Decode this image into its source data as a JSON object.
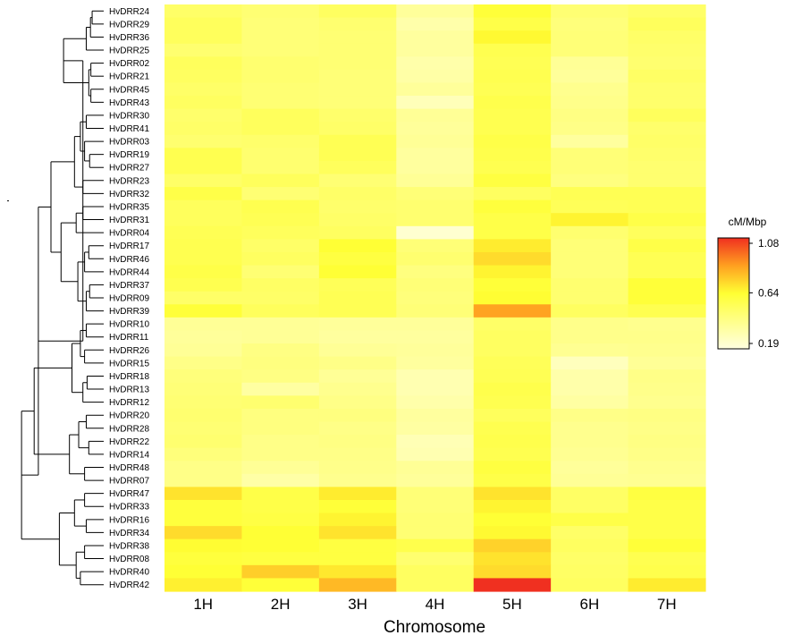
{
  "chart_data": {
    "type": "heatmap",
    "title": "",
    "xlabel": "Chromosome",
    "ylabel": "",
    "columns": [
      "1H",
      "2H",
      "3H",
      "4H",
      "5H",
      "6H",
      "7H"
    ],
    "rows": [
      "HvDRR24",
      "HvDRR29",
      "HvDRR36",
      "HvDRR25",
      "HvDRR02",
      "HvDRR21",
      "HvDRR45",
      "HvDRR43",
      "HvDRR30",
      "HvDRR41",
      "HvDRR03",
      "HvDRR19",
      "HvDRR27",
      "HvDRR23",
      "HvDRR32",
      "HvDRR35",
      "HvDRR31",
      "HvDRR04",
      "HvDRR17",
      "HvDRR46",
      "HvDRR44",
      "HvDRR37",
      "HvDRR09",
      "HvDRR39",
      "HvDRR10",
      "HvDRR11",
      "HvDRR26",
      "HvDRR15",
      "HvDRR18",
      "HvDRR13",
      "HvDRR12",
      "HvDRR20",
      "HvDRR28",
      "HvDRR22",
      "HvDRR14",
      "HvDRR48",
      "HvDRR07",
      "HvDRR47",
      "HvDRR33",
      "HvDRR16",
      "HvDRR34",
      "HvDRR38",
      "HvDRR08",
      "HvDRR40",
      "HvDRR42"
    ],
    "values": [
      [
        0.5,
        0.47,
        0.52,
        0.37,
        0.62,
        0.47,
        0.5
      ],
      [
        0.53,
        0.46,
        0.48,
        0.33,
        0.58,
        0.45,
        0.53
      ],
      [
        0.53,
        0.46,
        0.47,
        0.36,
        0.65,
        0.46,
        0.5
      ],
      [
        0.48,
        0.46,
        0.47,
        0.36,
        0.56,
        0.46,
        0.49
      ],
      [
        0.53,
        0.48,
        0.47,
        0.33,
        0.55,
        0.38,
        0.48
      ],
      [
        0.52,
        0.48,
        0.46,
        0.34,
        0.56,
        0.37,
        0.51
      ],
      [
        0.5,
        0.47,
        0.46,
        0.37,
        0.55,
        0.4,
        0.49
      ],
      [
        0.52,
        0.47,
        0.46,
        0.29,
        0.57,
        0.41,
        0.49
      ],
      [
        0.49,
        0.53,
        0.49,
        0.38,
        0.56,
        0.43,
        0.53
      ],
      [
        0.5,
        0.53,
        0.5,
        0.37,
        0.56,
        0.42,
        0.49
      ],
      [
        0.48,
        0.49,
        0.55,
        0.38,
        0.58,
        0.36,
        0.5
      ],
      [
        0.56,
        0.48,
        0.55,
        0.36,
        0.57,
        0.46,
        0.49
      ],
      [
        0.56,
        0.48,
        0.53,
        0.36,
        0.56,
        0.46,
        0.48
      ],
      [
        0.5,
        0.53,
        0.47,
        0.38,
        0.6,
        0.44,
        0.48
      ],
      [
        0.58,
        0.47,
        0.5,
        0.46,
        0.52,
        0.55,
        0.55
      ],
      [
        0.53,
        0.56,
        0.49,
        0.48,
        0.61,
        0.54,
        0.55
      ],
      [
        0.53,
        0.55,
        0.5,
        0.48,
        0.58,
        0.66,
        0.58
      ],
      [
        0.55,
        0.53,
        0.52,
        0.23,
        0.58,
        0.48,
        0.53
      ],
      [
        0.56,
        0.5,
        0.63,
        0.46,
        0.68,
        0.46,
        0.58
      ],
      [
        0.56,
        0.52,
        0.6,
        0.48,
        0.72,
        0.46,
        0.55
      ],
      [
        0.58,
        0.47,
        0.63,
        0.44,
        0.66,
        0.46,
        0.55
      ],
      [
        0.56,
        0.51,
        0.54,
        0.46,
        0.62,
        0.48,
        0.62
      ],
      [
        0.5,
        0.5,
        0.55,
        0.45,
        0.64,
        0.48,
        0.62
      ],
      [
        0.62,
        0.53,
        0.55,
        0.46,
        0.85,
        0.52,
        0.56
      ],
      [
        0.38,
        0.38,
        0.37,
        0.37,
        0.5,
        0.41,
        0.4
      ],
      [
        0.37,
        0.38,
        0.36,
        0.36,
        0.52,
        0.41,
        0.41
      ],
      [
        0.38,
        0.43,
        0.38,
        0.37,
        0.52,
        0.39,
        0.4
      ],
      [
        0.42,
        0.44,
        0.42,
        0.36,
        0.54,
        0.28,
        0.38
      ],
      [
        0.45,
        0.43,
        0.38,
        0.31,
        0.55,
        0.33,
        0.42
      ],
      [
        0.46,
        0.35,
        0.4,
        0.31,
        0.57,
        0.33,
        0.41
      ],
      [
        0.47,
        0.48,
        0.42,
        0.33,
        0.56,
        0.35,
        0.4
      ],
      [
        0.48,
        0.44,
        0.44,
        0.36,
        0.53,
        0.42,
        0.43
      ],
      [
        0.47,
        0.44,
        0.42,
        0.35,
        0.56,
        0.4,
        0.42
      ],
      [
        0.48,
        0.42,
        0.43,
        0.3,
        0.57,
        0.4,
        0.43
      ],
      [
        0.45,
        0.42,
        0.42,
        0.31,
        0.56,
        0.39,
        0.42
      ],
      [
        0.42,
        0.38,
        0.41,
        0.38,
        0.6,
        0.37,
        0.4
      ],
      [
        0.42,
        0.34,
        0.4,
        0.37,
        0.58,
        0.38,
        0.39
      ],
      [
        0.7,
        0.58,
        0.68,
        0.46,
        0.7,
        0.51,
        0.6
      ],
      [
        0.61,
        0.58,
        0.62,
        0.46,
        0.66,
        0.51,
        0.58
      ],
      [
        0.61,
        0.59,
        0.66,
        0.47,
        0.63,
        0.58,
        0.58
      ],
      [
        0.72,
        0.63,
        0.7,
        0.47,
        0.65,
        0.5,
        0.58
      ],
      [
        0.64,
        0.63,
        0.6,
        0.57,
        0.74,
        0.52,
        0.62
      ],
      [
        0.61,
        0.6,
        0.6,
        0.48,
        0.7,
        0.5,
        0.56
      ],
      [
        0.63,
        0.75,
        0.69,
        0.52,
        0.72,
        0.51,
        0.57
      ],
      [
        0.67,
        0.62,
        0.8,
        0.52,
        1.08,
        0.52,
        0.68
      ]
    ],
    "legend": {
      "title": "cM/Mbp",
      "ticks": [
        "1.08",
        "0.64",
        "0.19"
      ],
      "min": 0.19,
      "mid": 0.64,
      "max": 1.08,
      "placement": "right"
    },
    "colors": {
      "low": "#ffffe0",
      "mid": "#ffff33",
      "high": "#f03020",
      "mid_orange": "#ffa020"
    }
  }
}
